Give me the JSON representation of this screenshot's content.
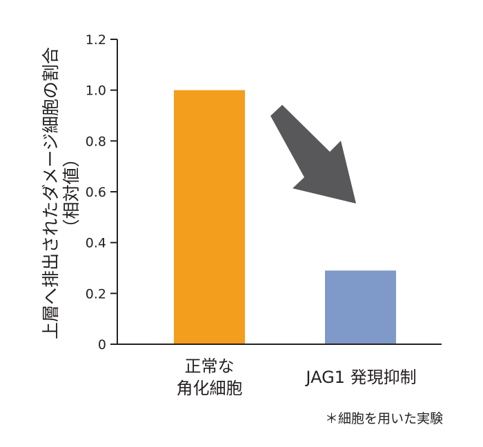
{
  "chart_data": {
    "type": "bar",
    "ylabel": [
      "上層へ排出されたダメージ細胞の割合",
      "（相対値）"
    ],
    "yticks": [
      "0",
      "0.2",
      "0.4",
      "0.6",
      "0.8",
      "1.0",
      "1.2"
    ],
    "ylim": [
      0,
      1.2
    ],
    "categories": [
      {
        "lines": [
          "正常な",
          "角化細胞"
        ]
      },
      {
        "lines": [
          "JAG1 発現抑制"
        ]
      }
    ],
    "values": [
      1.0,
      0.29
    ],
    "colors": [
      "#f39e1c",
      "#7f9ac8"
    ],
    "arrow_color": "#58585a",
    "grid": false,
    "legend": "none",
    "footnote": "＊細胞を用いた実験"
  }
}
